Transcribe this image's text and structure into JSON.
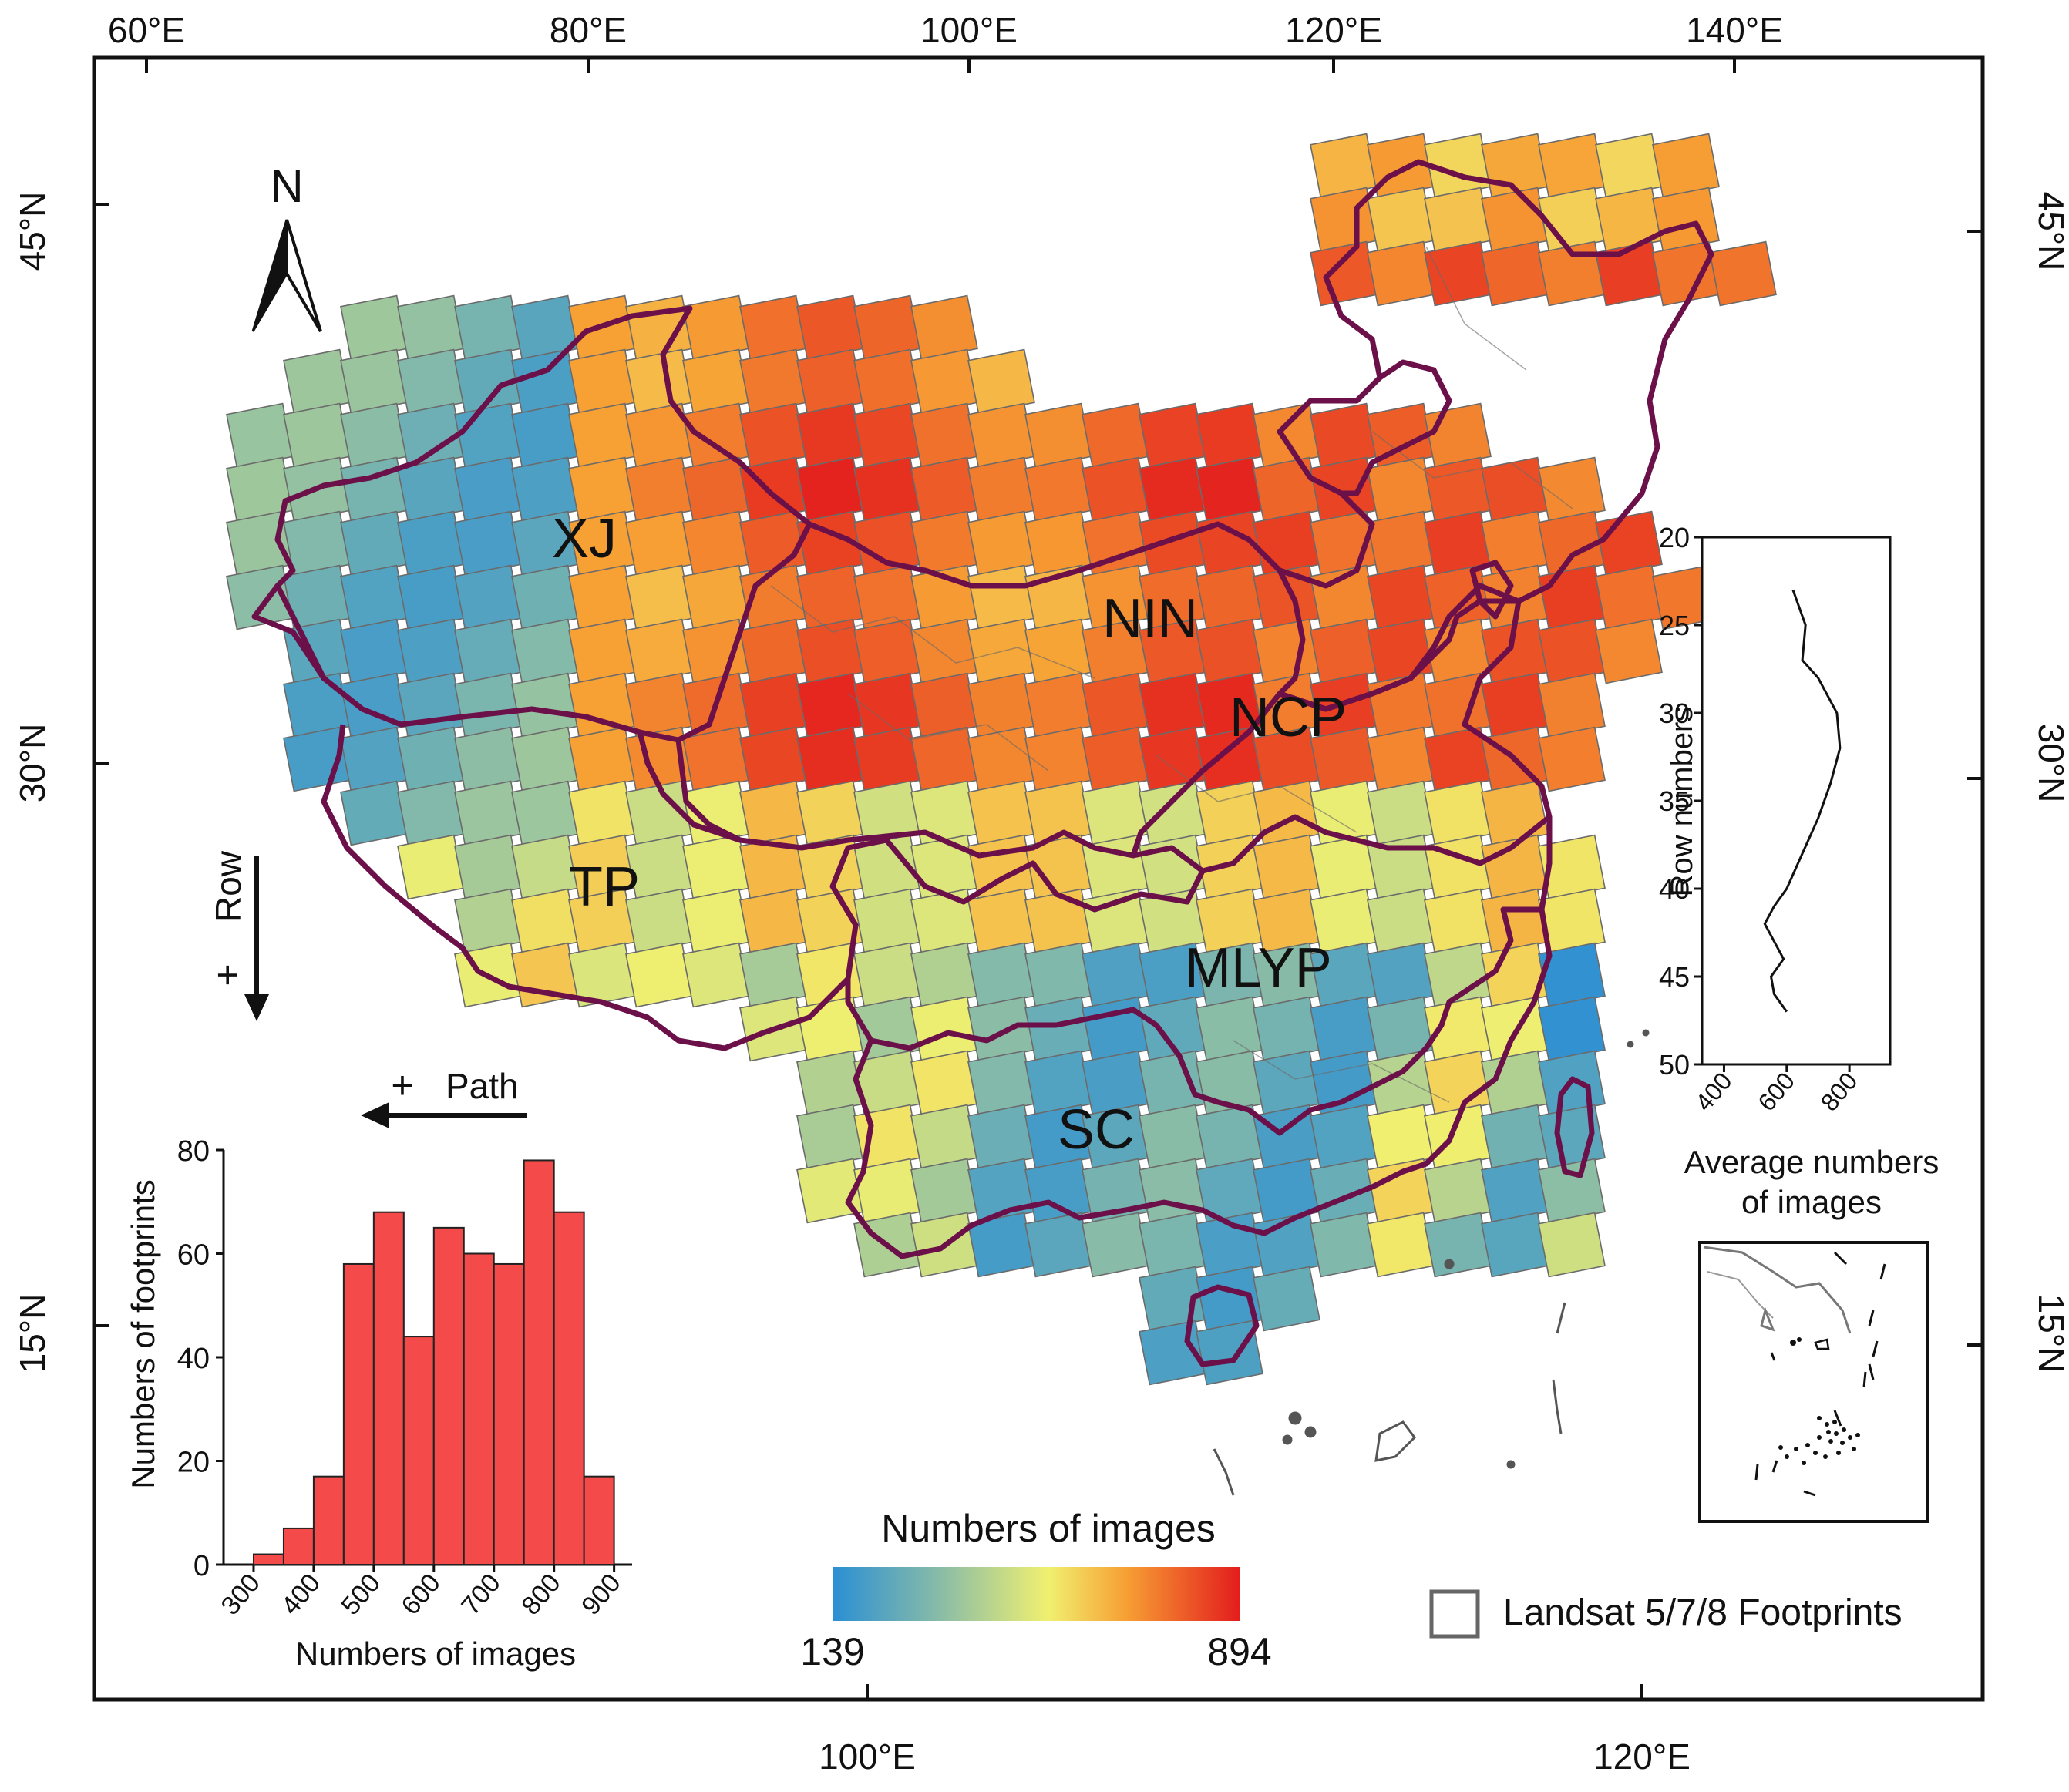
{
  "top_axis": {
    "labels": [
      "60°E",
      "80°E",
      "100°E",
      "120°E",
      "140°E"
    ]
  },
  "bottom_axis": {
    "labels": [
      "100°E",
      "120°E"
    ]
  },
  "left_axis": {
    "labels": [
      "45°N",
      "30°N",
      "15°N"
    ]
  },
  "right_axis": {
    "labels": [
      "45°N",
      "30°N",
      "15°N"
    ]
  },
  "north_arrow": {
    "label": "N"
  },
  "row_arrow": {
    "label": "Row",
    "sign": "+"
  },
  "path_arrow": {
    "label": "Path",
    "sign": "+"
  },
  "regions": [
    "XJ",
    "NIN",
    "NCP",
    "TP",
    "MLYP",
    "SC"
  ],
  "colorbar": {
    "title": "Numbers of images",
    "min_label": "139",
    "max_label": "894",
    "colors": [
      "#2b8fd4",
      "#8fbfa4",
      "#f0f070",
      "#f7a034",
      "#e31d1d"
    ]
  },
  "legend": {
    "label": "Landsat 5/7/8 Footprints"
  },
  "histogram": {
    "chart_data": {
      "type": "bar",
      "categories": [
        "300-350",
        "350-400",
        "400-450",
        "450-500",
        "500-550",
        "550-600",
        "600-650",
        "650-700",
        "700-750",
        "750-800",
        "800-850",
        "850-900"
      ],
      "values": [
        2,
        7,
        17,
        58,
        68,
        44,
        65,
        60,
        58,
        78,
        68,
        17
      ],
      "xticks": [
        "300",
        "400",
        "500",
        "600",
        "700",
        "800",
        "900"
      ],
      "yticks": [
        "0",
        "20",
        "40",
        "60",
        "80"
      ],
      "xlabel": "Numbers of images",
      "ylabel": "Numbers of footprints",
      "ylim": [
        0,
        80
      ],
      "color": "#f44a4a"
    }
  },
  "row_profile": {
    "chart_data": {
      "type": "line",
      "x": [
        620,
        640,
        660,
        650,
        700,
        760,
        770,
        740,
        700,
        650,
        600,
        560,
        530,
        560,
        590,
        550,
        560,
        600
      ],
      "y": [
        23,
        24,
        25,
        27,
        28,
        30,
        32,
        34,
        36,
        38,
        40,
        41,
        42,
        43,
        44,
        45,
        46,
        47
      ],
      "xticks": [
        "400",
        "600",
        "800"
      ],
      "yticks": [
        "20",
        "25",
        "30",
        "35",
        "40",
        "45",
        "50"
      ],
      "xlabel": "Average numbers of images",
      "ylabel": "Row numbers",
      "xlim": [
        330,
        930
      ],
      "ylim": [
        20,
        50
      ]
    }
  }
}
